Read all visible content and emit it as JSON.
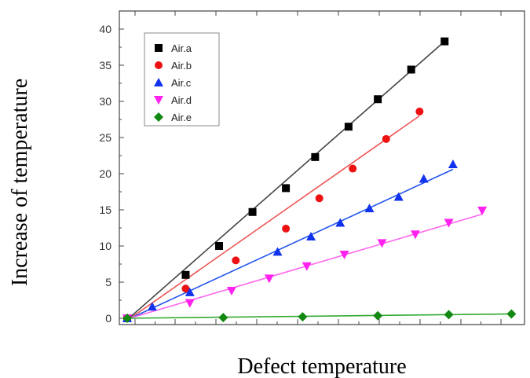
{
  "chart_data": {
    "type": "scatter",
    "title": "",
    "xlabel": "Defect temperature",
    "ylabel": "Increase of temperature",
    "ylim": [
      0,
      40
    ],
    "yticks": [
      "0",
      "5",
      "10",
      "15",
      "20",
      "25",
      "30",
      "35",
      "40"
    ],
    "xlim": [
      0,
      9.4
    ],
    "xticks": [],
    "grid": false,
    "legend_position": "top-left",
    "series": [
      {
        "name": "Air.a",
        "color": "#000000",
        "marker": "square",
        "line_color": "#444444",
        "x": [
          0,
          1.4,
          2.2,
          3.0,
          3.8,
          4.5,
          5.3,
          6.0,
          6.8,
          7.6
        ],
        "y": [
          0,
          6.0,
          10.0,
          14.7,
          18.0,
          22.3,
          26.5,
          30.3,
          34.4,
          38.3
        ],
        "fit": [
          [
            0,
            -0.2
          ],
          [
            7.6,
            38.3
          ]
        ]
      },
      {
        "name": "Air.b",
        "color": "#ee1111",
        "marker": "circle",
        "line_color": "#ee5555",
        "x": [
          0,
          1.4,
          2.6,
          3.8,
          4.6,
          5.4,
          6.2,
          7.0
        ],
        "y": [
          0,
          4.1,
          8.0,
          12.4,
          16.6,
          20.7,
          24.8,
          28.6
        ],
        "fit": [
          [
            0,
            -0.3
          ],
          [
            7.0,
            28.0
          ]
        ]
      },
      {
        "name": "Air.c",
        "color": "#1133ee",
        "marker": "triangle-up",
        "line_color": "#2255ee",
        "x": [
          0,
          0.6,
          1.5,
          3.6,
          4.4,
          5.1,
          5.8,
          6.5,
          7.1,
          7.8
        ],
        "y": [
          0,
          1.6,
          3.6,
          9.2,
          11.3,
          13.2,
          15.2,
          16.8,
          19.3,
          21.3
        ],
        "fit": [
          [
            0,
            -0.2
          ],
          [
            7.8,
            20.6
          ]
        ]
      },
      {
        "name": "Air.d",
        "color": "#ff22ee",
        "marker": "triangle-down",
        "line_color": "#ff66ee",
        "x": [
          0,
          1.5,
          2.5,
          3.4,
          4.3,
          5.2,
          6.1,
          6.9,
          7.7,
          8.5
        ],
        "y": [
          0,
          2.1,
          3.8,
          5.5,
          7.2,
          8.8,
          10.4,
          11.6,
          13.2,
          14.9
        ],
        "fit": [
          [
            0,
            -0.1
          ],
          [
            8.5,
            14.4
          ]
        ]
      },
      {
        "name": "Air.e",
        "color": "#118811",
        "marker": "diamond",
        "line_color": "#33aa33",
        "x": [
          0,
          2.3,
          4.2,
          6.0,
          7.7,
          9.2
        ],
        "y": [
          0,
          0.1,
          0.2,
          0.35,
          0.5,
          0.6
        ],
        "fit": [
          [
            0,
            0.0
          ],
          [
            9.2,
            0.6
          ]
        ]
      }
    ]
  }
}
